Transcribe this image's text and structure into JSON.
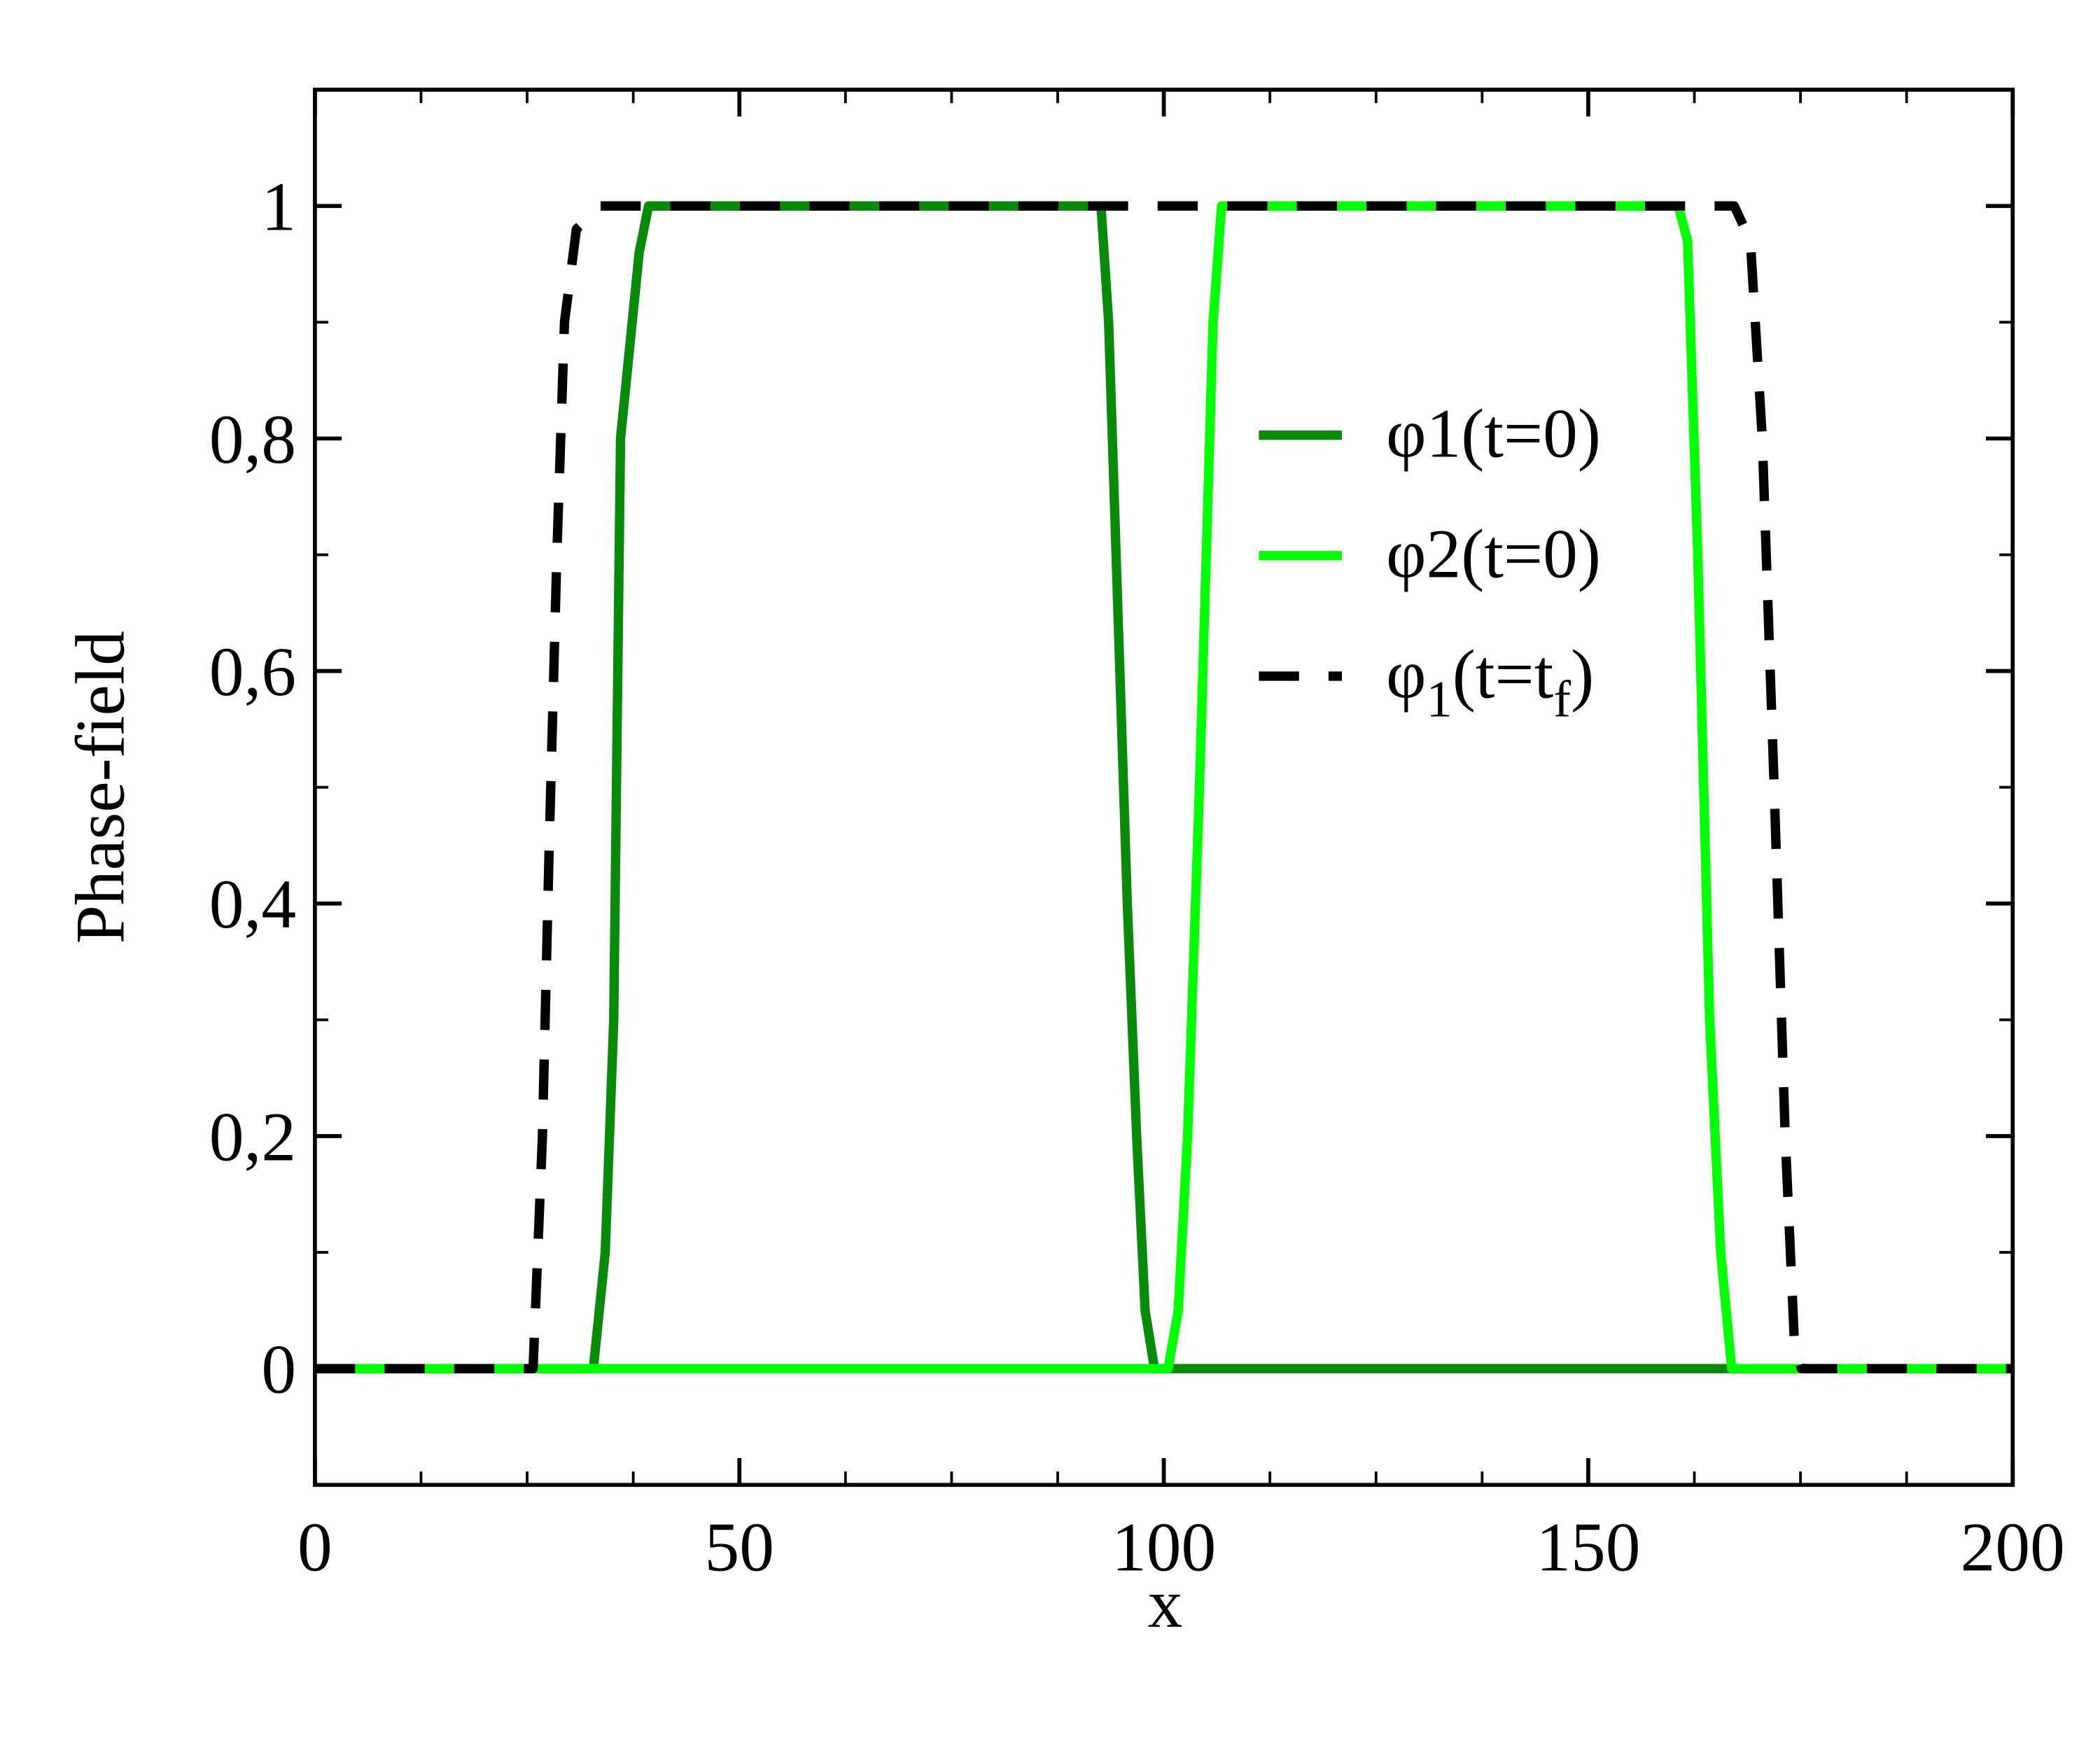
{
  "chart_data": {
    "type": "line",
    "xlabel": "x",
    "ylabel": "Phase-field",
    "xlim": [
      0,
      200
    ],
    "xticks": [
      0,
      50,
      100,
      150,
      200
    ],
    "ylim": [
      -0.1,
      1.1
    ],
    "yticks": [
      0,
      {
        "value": 0.2,
        "label": "0,2"
      },
      {
        "value": 0.4,
        "label": "0,4"
      },
      {
        "value": 0.6,
        "label": "0,6"
      },
      {
        "value": 0.8,
        "label": "0,8"
      },
      1
    ],
    "legend": "center right",
    "series": [
      {
        "name": "φ1(t=0)",
        "color": "#0a8a0a",
        "dash": false,
        "x": [
          0,
          32.8,
          34.2,
          35.2,
          36.0,
          38.2,
          39.3,
          92.6,
          93.5,
          95.7,
          96.8,
          97.8,
          98.9,
          200
        ],
        "values": [
          0,
          0,
          0.1,
          0.3,
          0.8,
          0.96,
          1,
          1,
          0.9,
          0.4,
          0.2,
          0.05,
          0,
          0
        ]
      },
      {
        "name": "φ2(t=0)",
        "color": "#00ff00",
        "dash": false,
        "x": [
          0,
          100.5,
          101.7,
          102.8,
          104.2,
          105.8,
          106.8,
          160.6,
          161.7,
          162.9,
          164.3,
          165.6,
          166.9,
          200
        ],
        "values": [
          0,
          0,
          0.05,
          0.2,
          0.5,
          0.9,
          1,
          1,
          0.97,
          0.7,
          0.3,
          0.1,
          0,
          0
        ]
      },
      {
        "name": "φ1(t=tf)",
        "color": "#000000",
        "dash": true,
        "x": [
          0,
          25.7,
          26.8,
          27.6,
          28.5,
          29.4,
          30.8,
          33.6,
          167.2,
          169.1,
          170.5,
          171.9,
          173.2,
          174.3,
          175.1,
          200
        ],
        "values": [
          0,
          0,
          0.2,
          0.45,
          0.7,
          0.9,
          0.98,
          1,
          1,
          0.97,
          0.8,
          0.5,
          0.2,
          0.02,
          0,
          0
        ]
      }
    ]
  }
}
